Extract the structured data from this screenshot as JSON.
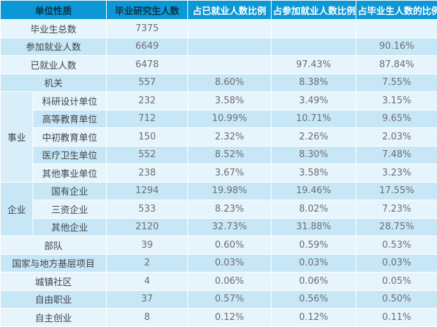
{
  "colors": {
    "header_bg": "#0c97d6",
    "header_text_dark": "#0d3349",
    "header_text_light": "#ffffff",
    "row_light": "#e6f4fb",
    "row_medium": "#c7e7f7",
    "group_a_bg": "#d9eef9",
    "group_b_bg": "#c7e7f7",
    "border": "#ffffff",
    "label_text": "#3f4447",
    "value_text": "#6d6e71"
  },
  "chart_data": {
    "type": "table",
    "columns": [
      "单位性质",
      "毕业研究生人数",
      "占已就业人数比例",
      "占参加就业人数比例",
      "占毕业生人数的比例"
    ],
    "rows": [
      {
        "label": "毕业生总数",
        "values": [
          "7375",
          "",
          "",
          ""
        ]
      },
      {
        "label": "参加就业人数",
        "values": [
          "6649",
          "",
          "",
          "90.16%"
        ]
      },
      {
        "label": "已就业人数",
        "values": [
          "6478",
          "",
          "97.43%",
          "87.84%"
        ]
      },
      {
        "label": "机关",
        "values": [
          "557",
          "8.60%",
          "8.38%",
          "7.55%"
        ]
      },
      {
        "label": "科研设计单位",
        "group": "事业",
        "group_span": 5,
        "group_shade": "group-a",
        "values": [
          "232",
          "3.58%",
          "3.49%",
          "3.15%"
        ]
      },
      {
        "label": "高等教育单位",
        "values": [
          "712",
          "10.99%",
          "10.71%",
          "9.65%"
        ]
      },
      {
        "label": "中初教育单位",
        "values": [
          "150",
          "2.32%",
          "2.26%",
          "2.03%"
        ]
      },
      {
        "label": "医疗卫生单位",
        "values": [
          "552",
          "8.52%",
          "8.30%",
          "7.48%"
        ]
      },
      {
        "label": "其他事业单位",
        "values": [
          "238",
          "3.67%",
          "3.58%",
          "3.23%"
        ]
      },
      {
        "label": "国有企业",
        "group": "企业",
        "group_span": 3,
        "group_shade": "group-b",
        "values": [
          "1294",
          "19.98%",
          "19.46%",
          "17.55%"
        ]
      },
      {
        "label": "三资企业",
        "values": [
          "533",
          "8.23%",
          "8.02%",
          "7.23%"
        ]
      },
      {
        "label": "其他企业",
        "values": [
          "2120",
          "32.73%",
          "31.88%",
          "28.75%"
        ]
      },
      {
        "label": "部队",
        "values": [
          "39",
          "0.60%",
          "0.59%",
          "0.53%"
        ]
      },
      {
        "label": "国家与地方基层项目",
        "values": [
          "2",
          "0.03%",
          "0.03%",
          "0.03%"
        ]
      },
      {
        "label": "城镇社区",
        "values": [
          "4",
          "0.06%",
          "0.06%",
          "0.05%"
        ]
      },
      {
        "label": "自由职业",
        "values": [
          "37",
          "0.57%",
          "0.56%",
          "0.50%"
        ]
      },
      {
        "label": "自主创业",
        "values": [
          "8",
          "0.12%",
          "0.12%",
          "0.11%"
        ]
      }
    ]
  }
}
